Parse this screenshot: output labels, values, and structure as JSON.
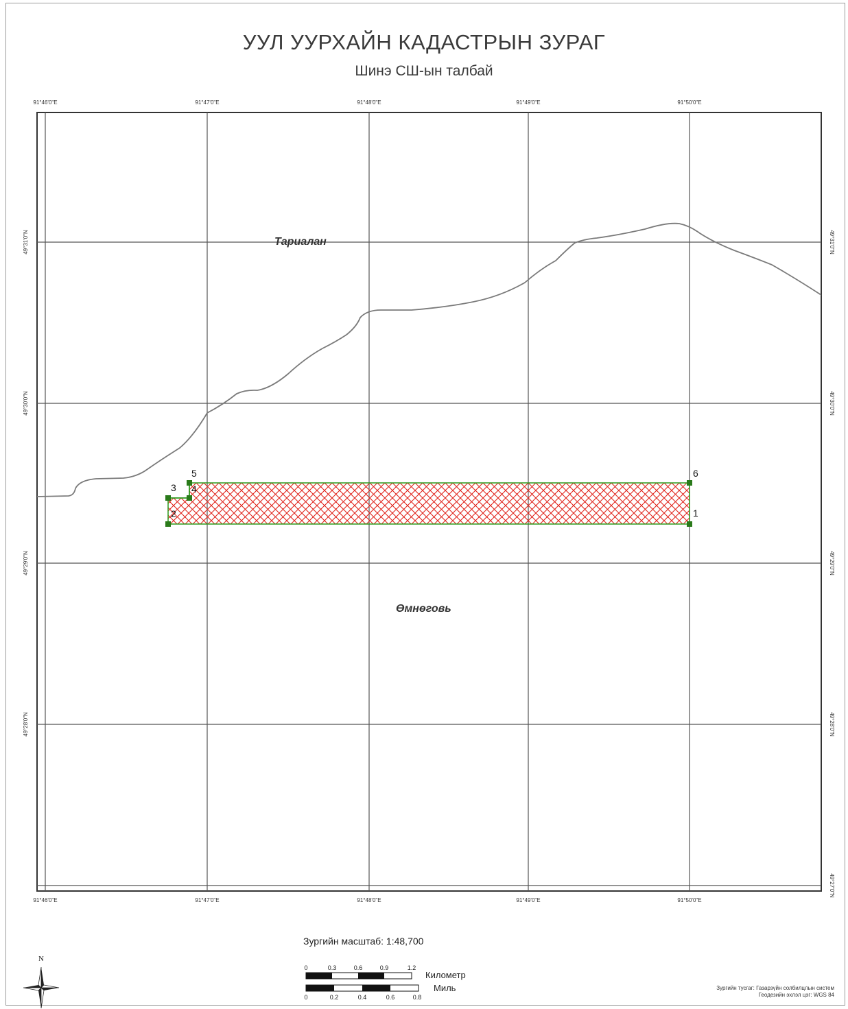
{
  "map": {
    "title": "УУЛ УУРХАЙН КАДАСТРЫН ЗУРАГ",
    "subtitle": "Шинэ СШ-ын талбай",
    "longitude_labels": [
      "91°46'0\"E",
      "91°47'0\"E",
      "91°48'0\"E",
      "91°49'0\"E",
      "91°50'0\"E"
    ],
    "latitude_labels": [
      "49°31'0\"N",
      "49°30'0\"N",
      "49°29'0\"N",
      "49°28'0\"N",
      "49°27'0\"N"
    ],
    "region_labels": [
      "Тариалан",
      "Өмнөговь"
    ],
    "parcel_vertices": [
      "1",
      "2",
      "3",
      "4",
      "5",
      "6"
    ],
    "colors": {
      "parcel": "#e0241b",
      "vertex": "#2a7a1a",
      "grid": "#555555",
      "boundary": "#7a7a7a"
    }
  },
  "scale": {
    "text": "Зургийн масштаб:   1:48,700",
    "km_ticks": [
      "0",
      "0.3",
      "0.6",
      "0.9",
      "1.2"
    ],
    "km_label": "Километр",
    "mile_ticks": [
      "0",
      "0.2",
      "0.4",
      "0.6",
      "0.8"
    ],
    "mile_label": "Миль"
  },
  "footer": {
    "projection": "Зургийн тусгаг: Газарзүйн солбилцлын систем",
    "datum": "Геодезийн эхлэл цэг: WGS 84"
  },
  "north_arrow": {
    "label": "N",
    "icon": "north-arrow-icon"
  }
}
